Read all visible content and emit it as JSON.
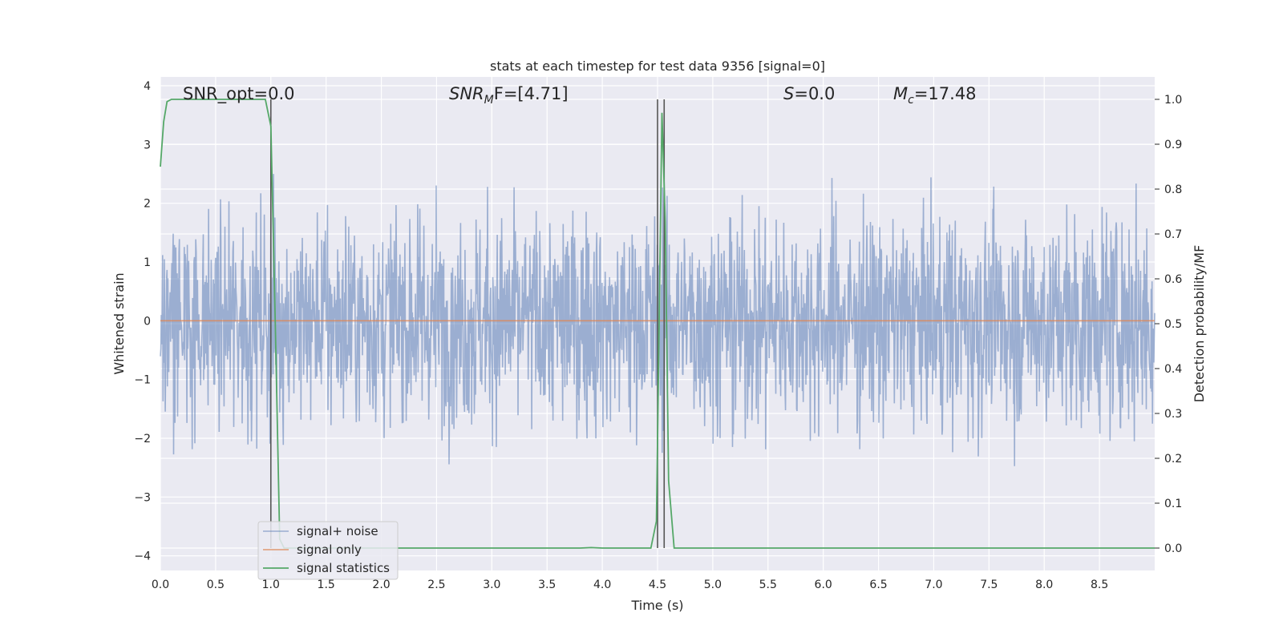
{
  "chart_data": {
    "type": "line",
    "title": "stats at each timestep for test data 9356 [signal=0]",
    "xlabel": "Time (s)",
    "ylabel": "Whitened strain",
    "y2label": "Detection probability/MF",
    "xlim": [
      0.0,
      9.0
    ],
    "ylim": [
      -4.25,
      4.15
    ],
    "y2lim": [
      -0.05,
      1.05
    ],
    "x_ticks": [
      0.0,
      0.5,
      1.0,
      1.5,
      2.0,
      2.5,
      3.0,
      3.5,
      4.0,
      4.5,
      5.0,
      5.5,
      6.0,
      6.5,
      7.0,
      7.5,
      8.0,
      8.5
    ],
    "x_tick_labels": [
      "0.0",
      "0.5",
      "1.0",
      "1.5",
      "2.0",
      "2.5",
      "3.0",
      "3.5",
      "4.0",
      "4.5",
      "5.0",
      "5.5",
      "6.0",
      "6.5",
      "7.0",
      "7.5",
      "8.0",
      "8.5"
    ],
    "y_ticks": [
      4,
      3,
      2,
      1,
      0,
      -1,
      -2,
      -3,
      -4
    ],
    "y_tick_labels": [
      "4",
      "3",
      "2",
      "1",
      "0",
      "−1",
      "−2",
      "−3",
      "−4"
    ],
    "y2_ticks": [
      1.0,
      0.9,
      0.8,
      0.7,
      0.6,
      0.5,
      0.4,
      0.3,
      0.2,
      0.1,
      0.0
    ],
    "y2_tick_labels": [
      "1.0",
      "0.9",
      "0.8",
      "0.7",
      "0.6",
      "0.5",
      "0.4",
      "0.3",
      "0.2",
      "0.1",
      "0.0"
    ],
    "grid": true,
    "legend_position": "lower-left",
    "annotations": {
      "snr_opt": "SNR_opt=0.0",
      "snr_mf_sym": "SNR",
      "snr_mf_sub": "M",
      "snr_mf_rest": "F=[4.71]",
      "s_sym": "S",
      "s_rest": "=0.0",
      "mc_sym": "M",
      "mc_sub": "c",
      "mc_rest": "=17.48"
    },
    "series": [
      {
        "name": "signal+ noise",
        "color": "#4c72b0",
        "style": "noise",
        "sigma": 0.9,
        "samples": 2250
      },
      {
        "name": "signal only",
        "color": "#dd8452",
        "x": [
          0.0,
          9.0
        ],
        "y": [
          0.0,
          0.0
        ]
      },
      {
        "name": "signal statistics",
        "color": "#55a868",
        "axis": "right",
        "x": [
          0.0,
          0.03,
          0.06,
          0.1,
          0.2,
          0.5,
          0.9,
          0.95,
          1.0,
          1.04,
          1.08,
          1.12,
          1.5,
          2.0,
          3.0,
          3.5,
          3.8,
          3.9,
          4.0,
          4.3,
          4.44,
          4.49,
          4.51,
          4.54,
          4.57,
          4.6,
          4.65,
          4.7,
          5.0,
          6.0,
          7.0,
          8.0,
          9.0
        ],
        "y": [
          0.85,
          0.95,
          0.995,
          1.0,
          1.0,
          1.0,
          1.0,
          1.0,
          0.94,
          0.5,
          0.02,
          0.0,
          0.0,
          0.0,
          0.0,
          0.0,
          0.0,
          0.001,
          0.0,
          0.0,
          0.0,
          0.06,
          0.42,
          0.97,
          0.73,
          0.15,
          0.0,
          0.0,
          0.0,
          0.0,
          0.0,
          0.0,
          0.0
        ]
      }
    ],
    "vertical_lines": {
      "color": "#555555",
      "x": [
        1.0,
        4.5,
        4.56
      ],
      "y2_top": 1.0
    }
  }
}
